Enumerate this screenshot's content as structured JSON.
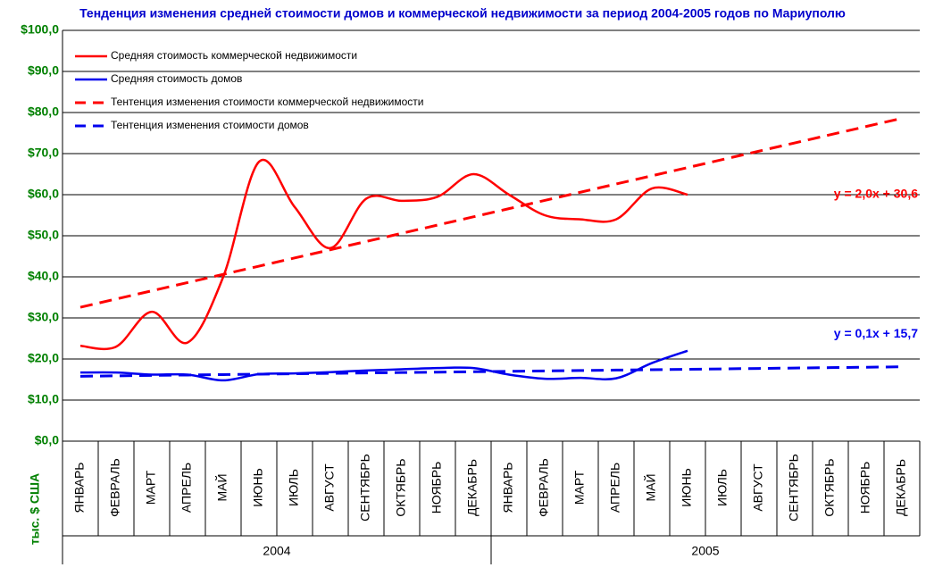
{
  "chart_data": {
    "type": "line",
    "title": "Тенденция изменения средней стоимости домов и коммерческой недвижимости за период 2004-2005 годов по Мариуполю",
    "y_label": "тыс. $ США",
    "categories": [
      "ЯНВАРЬ",
      "ФЕВРАЛЬ",
      "МАРТ",
      "АПРЕЛЬ",
      "МАЙ",
      "ИЮНЬ",
      "ИЮЛЬ",
      "АВГУСТ",
      "СЕНТЯБРЬ",
      "ОКТЯБРЬ",
      "НОЯБРЬ",
      "ДЕКАБРЬ",
      "ЯНВАРЬ",
      "ФЕВРАЛЬ",
      "МАРТ",
      "АПРЕЛЬ",
      "МАЙ",
      "ИЮНЬ",
      "ИЮЛЬ",
      "АВГУСТ",
      "СЕНТЯБРЬ",
      "ОКТЯБРЬ",
      "НОЯБРЬ",
      "ДЕКАБРЬ"
    ],
    "groups": [
      "2004",
      "2005"
    ],
    "series": [
      {
        "name": "Средняя стоимость коммерческой недвижимости",
        "color": "#ff0000",
        "style": "solid",
        "values": [
          23.2,
          23,
          31.5,
          24,
          40,
          68,
          57,
          47,
          59,
          58.5,
          59.5,
          65,
          60,
          55,
          54,
          54,
          61.5,
          60,
          null,
          null,
          null,
          null,
          null,
          null
        ]
      },
      {
        "name": "Средняя стоимость домов",
        "color": "#0000ee",
        "style": "solid",
        "values": [
          16.7,
          16.7,
          16.2,
          16.2,
          14.8,
          16.3,
          16.5,
          16.8,
          17.2,
          17.5,
          17.8,
          17.8,
          16.2,
          15.2,
          15.4,
          15.3,
          19,
          22,
          null,
          null,
          null,
          null,
          null,
          null
        ]
      },
      {
        "name": "Тентенция изменения стоимости коммерческой недвижимости",
        "color": "#ff0000",
        "style": "dashed",
        "values": [
          32.6,
          34.6,
          36.6,
          38.6,
          40.6,
          42.6,
          44.6,
          46.6,
          48.6,
          50.6,
          52.6,
          54.6,
          56.6,
          58.6,
          60.6,
          62.6,
          64.6,
          66.6,
          68.6,
          70.6,
          72.6,
          74.6,
          76.6,
          78.6
        ]
      },
      {
        "name": "Тентенция изменения стоимости домов",
        "color": "#0000ee",
        "style": "dashed",
        "values": [
          15.8,
          15.9,
          16,
          16.1,
          16.2,
          16.3,
          16.4,
          16.5,
          16.6,
          16.7,
          16.8,
          16.9,
          17,
          17.1,
          17.2,
          17.3,
          17.4,
          17.5,
          17.6,
          17.7,
          17.8,
          17.9,
          18,
          18.1
        ]
      }
    ],
    "annotations": [
      {
        "text": "y = 2,0x + 30,6",
        "color": "#ff0000",
        "value": 60
      },
      {
        "text": "y = 0,1x + 15,7",
        "color": "#0000ee",
        "value": 26
      }
    ],
    "ylim": [
      0,
      100
    ],
    "yticks": [
      {
        "value": 0,
        "label": "$0,0"
      },
      {
        "value": 10,
        "label": "$10,0"
      },
      {
        "value": 20,
        "label": "$20,0"
      },
      {
        "value": 30,
        "label": "$30,0"
      },
      {
        "value": 40,
        "label": "$40,0"
      },
      {
        "value": 50,
        "label": "$50,0"
      },
      {
        "value": 60,
        "label": "$60,0"
      },
      {
        "value": 70,
        "label": "$70,0"
      },
      {
        "value": 80,
        "label": "$80,0"
      },
      {
        "value": 90,
        "label": "$90,0"
      },
      {
        "value": 100,
        "label": "$100,0"
      }
    ],
    "grid": true,
    "legend": "top-left"
  }
}
